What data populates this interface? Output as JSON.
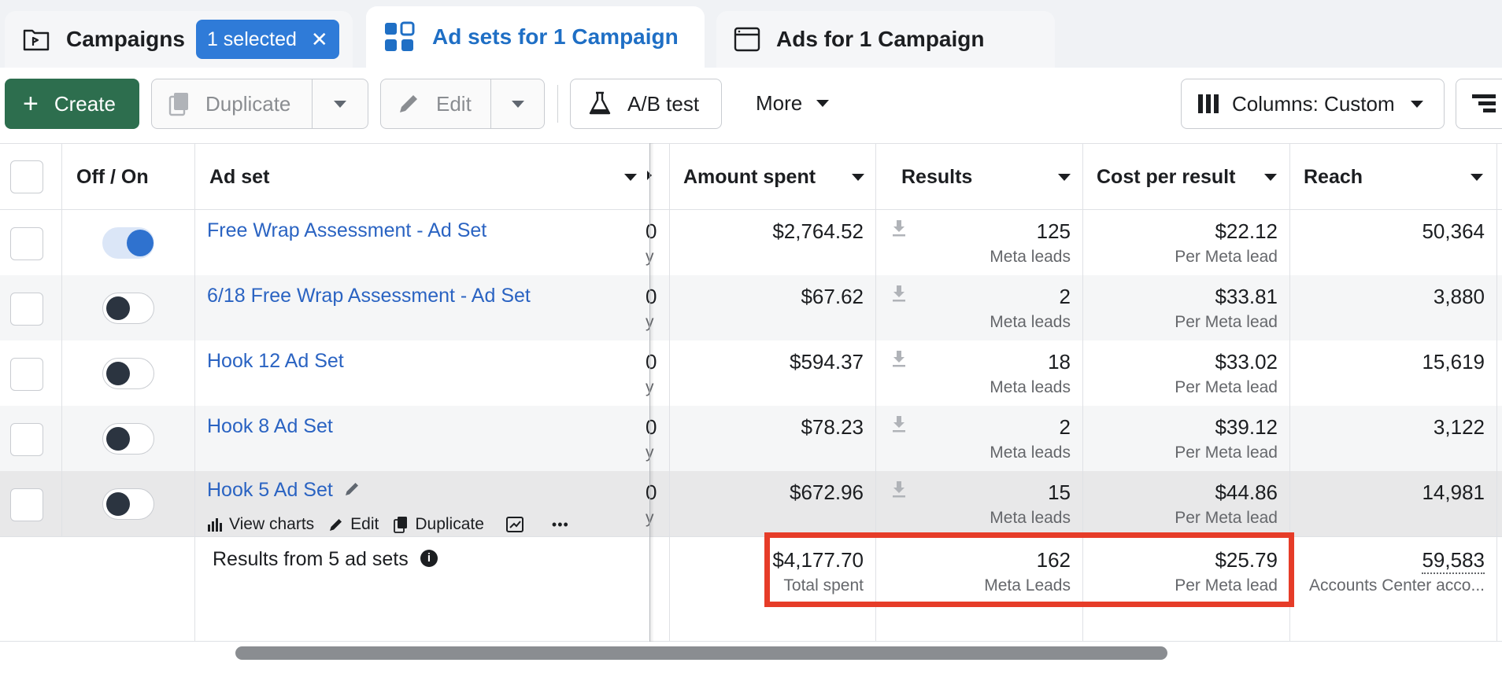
{
  "tabs": [
    {
      "label": "Campaigns",
      "selected_pill": "1 selected",
      "icon": "folder-flag-icon"
    },
    {
      "label": "Ad sets for 1 Campaign",
      "icon": "grid-icon"
    },
    {
      "label": "Ads for 1 Campaign",
      "icon": "window-icon"
    }
  ],
  "toolbar": {
    "create": "Create",
    "duplicate": "Duplicate",
    "edit": "Edit",
    "ab_test": "A/B test",
    "more": "More",
    "columns": "Columns: Custom"
  },
  "headers": {
    "off_on": "Off / On",
    "ad_set": "Ad set",
    "amount_spent": "Amount spent",
    "results": "Results",
    "cost_per_result": "Cost per result",
    "reach": "Reach"
  },
  "rows": [
    {
      "name": "Free Wrap Assessment - Ad Set",
      "on": true,
      "clip_top": "0",
      "clip_bot": "y",
      "spent": "$2,764.52",
      "results": "125",
      "results_sub": "Meta leads",
      "cpr": "$22.12",
      "cpr_sub": "Per Meta lead",
      "reach": "50,364"
    },
    {
      "name": "6/18 Free Wrap Assessment - Ad Set",
      "on": false,
      "clip_top": "0",
      "clip_bot": "y",
      "spent": "$67.62",
      "results": "2",
      "results_sub": "Meta leads",
      "cpr": "$33.81",
      "cpr_sub": "Per Meta lead",
      "reach": "3,880"
    },
    {
      "name": "Hook 12 Ad Set",
      "on": false,
      "clip_top": "0",
      "clip_bot": "y",
      "spent": "$594.37",
      "results": "18",
      "results_sub": "Meta leads",
      "cpr": "$33.02",
      "cpr_sub": "Per Meta lead",
      "reach": "15,619"
    },
    {
      "name": "Hook 8 Ad Set",
      "on": false,
      "clip_top": "0",
      "clip_bot": "y",
      "spent": "$78.23",
      "results": "2",
      "results_sub": "Meta leads",
      "cpr": "$39.12",
      "cpr_sub": "Per Meta lead",
      "reach": "3,122"
    },
    {
      "name": "Hook 5 Ad Set",
      "on": false,
      "clip_top": "0",
      "clip_bot": "y",
      "spent": "$672.96",
      "results": "15",
      "results_sub": "Meta leads",
      "cpr": "$44.86",
      "cpr_sub": "Per Meta lead",
      "reach": "14,981"
    }
  ],
  "row_actions": {
    "view_charts": "View charts",
    "edit": "Edit",
    "duplicate": "Duplicate",
    "more": "•••"
  },
  "summary": {
    "label": "Results from 5 ad sets",
    "spent": "$4,177.70",
    "spent_sub": "Total spent",
    "results": "162",
    "results_sub": "Meta Leads",
    "cpr": "$25.79",
    "cpr_sub": "Per Meta lead",
    "reach": "59,583",
    "reach_sub": "Accounts Center acco..."
  },
  "colors": {
    "accent": "#2f7bd8",
    "create": "#2d6e4e",
    "link": "#2a63c2",
    "highlight": "#e63c28"
  }
}
